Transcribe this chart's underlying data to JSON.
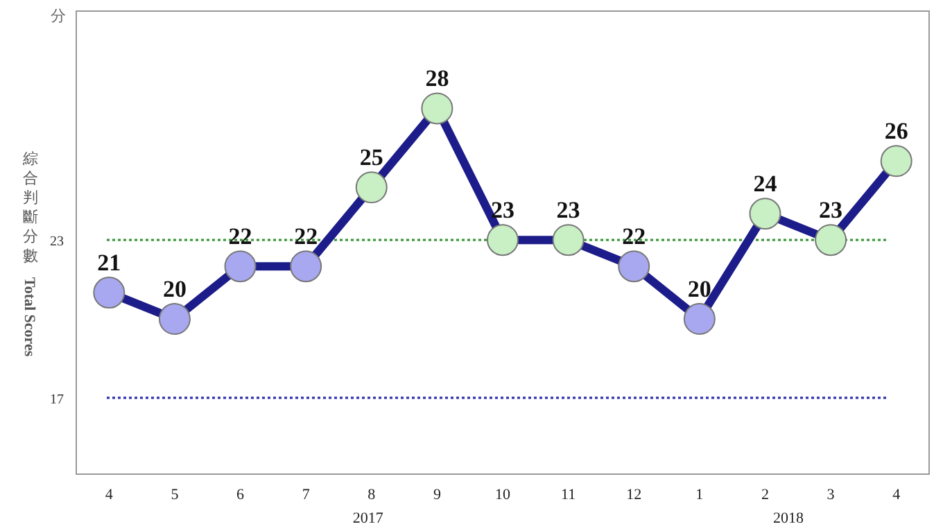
{
  "chart_data": {
    "type": "line",
    "title": "分",
    "ylabel": "綜合判斷分數 Total Scores",
    "categories": [
      "4",
      "5",
      "6",
      "7",
      "8",
      "9",
      "10",
      "11",
      "12",
      "1",
      "2",
      "3",
      "4"
    ],
    "series": [
      {
        "color": "#1c1c8a",
        "values": [
          21,
          20,
          22,
          22,
          25,
          28,
          23,
          23,
          22,
          20,
          24,
          23,
          26
        ],
        "colors": [
          "#a8a8f0",
          "#a8a8f0",
          "#a8a8f0",
          "#a8a8f0",
          "#c8f0c4",
          "#c8f0c4",
          "#c8f0c4",
          "#c8f0c4",
          "#a8a8f0",
          "#a8a8f0",
          "#c8f0c4",
          "#c8f0c4",
          "#c8f0c4"
        ]
      }
    ],
    "ylim": [
      14.1,
      31.7
    ],
    "yticks": [
      17,
      23
    ],
    "marker": "circle",
    "data_labels": true,
    "grid": false,
    "ref_lines": [
      {
        "axis": "y",
        "value": 23,
        "color": "#3a9a3a",
        "line_style": "dotted"
      },
      {
        "axis": "y",
        "value": 17,
        "color": "#3030b0",
        "line_style": "dotted"
      }
    ],
    "annotations": [
      "2017",
      "2018"
    ]
  }
}
